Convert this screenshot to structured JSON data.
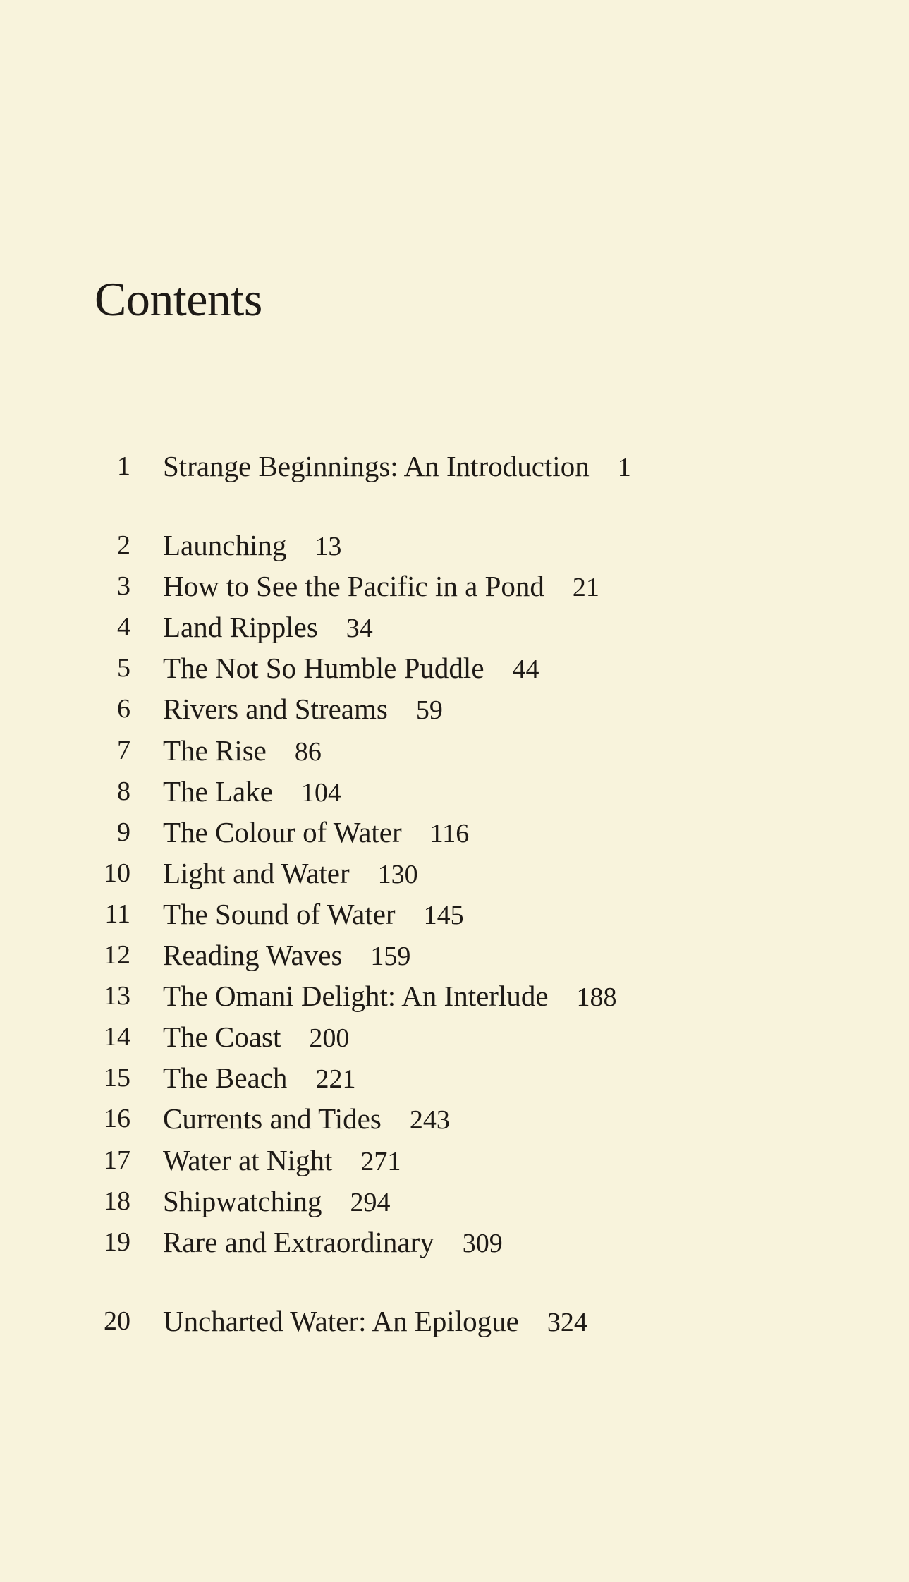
{
  "title": "Contents",
  "groups": [
    [
      {
        "number": "1",
        "title": "Strange Beginnings: An Introduction",
        "page": "1"
      }
    ],
    [
      {
        "number": "2",
        "title": "Launching",
        "page": "13"
      },
      {
        "number": "3",
        "title": "How to See the Pacific in a Pond",
        "page": "21"
      },
      {
        "number": "4",
        "title": "Land Ripples",
        "page": "34"
      },
      {
        "number": "5",
        "title": "The Not So Humble Puddle",
        "page": "44"
      },
      {
        "number": "6",
        "title": "Rivers and Streams",
        "page": "59"
      },
      {
        "number": "7",
        "title": "The Rise",
        "page": "86"
      },
      {
        "number": "8",
        "title": "The Lake",
        "page": "104"
      },
      {
        "number": "9",
        "title": "The Colour of Water",
        "page": "116"
      },
      {
        "number": "10",
        "title": "Light and Water",
        "page": "130"
      },
      {
        "number": "11",
        "title": "The Sound of Water",
        "page": "145"
      },
      {
        "number": "12",
        "title": "Reading Waves",
        "page": "159"
      },
      {
        "number": "13",
        "title": "The Omani Delight: An Interlude",
        "page": "188"
      },
      {
        "number": "14",
        "title": "The Coast",
        "page": "200"
      },
      {
        "number": "15",
        "title": "The Beach",
        "page": "221"
      },
      {
        "number": "16",
        "title": "Currents and Tides",
        "page": "243"
      },
      {
        "number": "17",
        "title": "Water at Night",
        "page": "271"
      },
      {
        "number": "18",
        "title": "Shipwatching",
        "page": "294"
      },
      {
        "number": "19",
        "title": "Rare and Extraordinary",
        "page": "309"
      }
    ],
    [
      {
        "number": "20",
        "title": "Uncharted Water: An Epilogue",
        "page": "324"
      }
    ]
  ],
  "colors": {
    "paper": "#f8f3dc",
    "ink": "#1e1a16"
  }
}
